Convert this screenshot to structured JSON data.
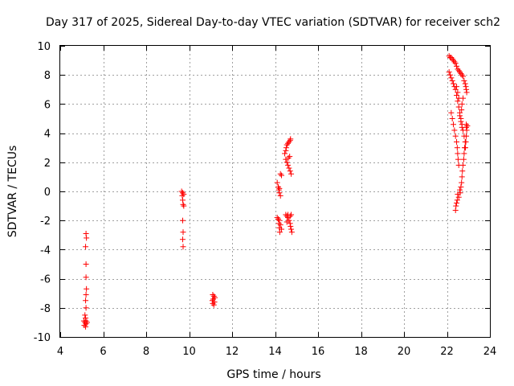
{
  "chart_data": {
    "type": "scatter",
    "title": "Day 317 of 2025, Sidereal Day-to-day VTEC variation (SDTVAR) for receiver sch2",
    "xlabel": "GPS time / hours",
    "ylabel": "SDTVAR / TECUs",
    "xlim": [
      4,
      24
    ],
    "ylim": [
      -10,
      10
    ],
    "xticks": [
      4,
      6,
      8,
      10,
      12,
      14,
      16,
      18,
      20,
      22,
      24
    ],
    "yticks": [
      -10,
      -8,
      -6,
      -4,
      -2,
      0,
      2,
      4,
      6,
      8,
      10
    ],
    "grid": true,
    "marker": "+",
    "marker_color": "#ff0000",
    "series": [
      {
        "name": "SDTVAR",
        "points": [
          [
            5.2,
            -2.9
          ],
          [
            5.22,
            -3.2
          ],
          [
            5.18,
            -3.8
          ],
          [
            5.2,
            -5.0
          ],
          [
            5.2,
            -5.9
          ],
          [
            5.22,
            -6.7
          ],
          [
            5.2,
            -7.1
          ],
          [
            5.18,
            -7.5
          ],
          [
            5.2,
            -8.0
          ],
          [
            5.15,
            -8.5
          ],
          [
            5.18,
            -8.7
          ],
          [
            5.1,
            -8.9
          ],
          [
            5.15,
            -9.0
          ],
          [
            5.2,
            -9.1
          ],
          [
            5.12,
            -9.2
          ],
          [
            5.18,
            -9.3
          ],
          [
            5.2,
            -8.9
          ],
          [
            5.25,
            -9.0
          ],
          [
            9.65,
            0.0
          ],
          [
            9.7,
            -0.1
          ],
          [
            9.75,
            -0.2
          ],
          [
            9.68,
            -0.3
          ],
          [
            9.7,
            -0.6
          ],
          [
            9.72,
            -0.9
          ],
          [
            9.75,
            -1.0
          ],
          [
            9.7,
            -2.0
          ],
          [
            9.72,
            -2.8
          ],
          [
            9.7,
            -3.3
          ],
          [
            9.72,
            -3.8
          ],
          [
            11.1,
            -7.1
          ],
          [
            11.15,
            -7.2
          ],
          [
            11.12,
            -7.4
          ],
          [
            11.08,
            -7.5
          ],
          [
            11.18,
            -7.6
          ],
          [
            11.1,
            -7.7
          ],
          [
            11.15,
            -7.8
          ],
          [
            11.2,
            -7.3
          ],
          [
            14.1,
            -1.8
          ],
          [
            14.15,
            -1.9
          ],
          [
            14.2,
            -2.0
          ],
          [
            14.18,
            -2.2
          ],
          [
            14.25,
            -2.3
          ],
          [
            14.2,
            -2.5
          ],
          [
            14.3,
            -2.6
          ],
          [
            14.22,
            -2.8
          ],
          [
            14.1,
            0.6
          ],
          [
            14.15,
            0.3
          ],
          [
            14.18,
            0.1
          ],
          [
            14.2,
            -0.1
          ],
          [
            14.25,
            -0.3
          ],
          [
            14.2,
            0.2
          ],
          [
            14.3,
            1.1
          ],
          [
            14.25,
            1.2
          ],
          [
            14.45,
            2.6
          ],
          [
            14.5,
            2.8
          ],
          [
            14.52,
            3.0
          ],
          [
            14.55,
            3.2
          ],
          [
            14.6,
            3.3
          ],
          [
            14.65,
            3.4
          ],
          [
            14.7,
            3.5
          ],
          [
            14.72,
            3.6
          ],
          [
            14.5,
            2.2
          ],
          [
            14.55,
            2.0
          ],
          [
            14.6,
            1.8
          ],
          [
            14.65,
            1.6
          ],
          [
            14.7,
            1.4
          ],
          [
            14.75,
            1.2
          ],
          [
            14.62,
            2.3
          ],
          [
            14.68,
            2.4
          ],
          [
            14.5,
            -1.6
          ],
          [
            14.55,
            -1.7
          ],
          [
            14.6,
            -1.8
          ],
          [
            14.65,
            -2.0
          ],
          [
            14.7,
            -2.2
          ],
          [
            14.72,
            -2.4
          ],
          [
            14.75,
            -2.6
          ],
          [
            14.78,
            -2.8
          ],
          [
            14.55,
            -2.1
          ],
          [
            14.6,
            -1.6
          ],
          [
            14.7,
            -1.7
          ],
          [
            14.75,
            -1.6
          ],
          [
            22.1,
            9.3
          ],
          [
            22.15,
            9.2
          ],
          [
            22.2,
            9.2
          ],
          [
            22.25,
            9.1
          ],
          [
            22.3,
            9.0
          ],
          [
            22.35,
            8.9
          ],
          [
            22.4,
            8.8
          ],
          [
            22.45,
            8.6
          ],
          [
            22.5,
            8.4
          ],
          [
            22.55,
            8.3
          ],
          [
            22.6,
            8.2
          ],
          [
            22.65,
            8.1
          ],
          [
            22.7,
            8.0
          ],
          [
            22.75,
            7.9
          ],
          [
            22.8,
            7.6
          ],
          [
            22.85,
            7.4
          ],
          [
            22.88,
            7.2
          ],
          [
            22.9,
            7.0
          ],
          [
            22.92,
            6.8
          ],
          [
            22.1,
            8.2
          ],
          [
            22.15,
            8.0
          ],
          [
            22.2,
            7.8
          ],
          [
            22.25,
            7.6
          ],
          [
            22.3,
            7.4
          ],
          [
            22.35,
            7.2
          ],
          [
            22.4,
            7.0
          ],
          [
            22.45,
            6.6
          ],
          [
            22.5,
            6.2
          ],
          [
            22.55,
            5.8
          ],
          [
            22.6,
            5.4
          ],
          [
            22.65,
            5.0
          ],
          [
            22.7,
            4.6
          ],
          [
            22.75,
            4.2
          ],
          [
            22.8,
            3.8
          ],
          [
            22.85,
            3.4
          ],
          [
            22.82,
            3.0
          ],
          [
            22.8,
            2.6
          ],
          [
            22.78,
            2.2
          ],
          [
            22.75,
            1.8
          ],
          [
            22.72,
            1.4
          ],
          [
            22.7,
            1.0
          ],
          [
            22.68,
            0.6
          ],
          [
            22.65,
            0.3
          ],
          [
            22.2,
            5.4
          ],
          [
            22.25,
            5.0
          ],
          [
            22.3,
            4.6
          ],
          [
            22.35,
            4.2
          ],
          [
            22.4,
            3.8
          ],
          [
            22.45,
            3.4
          ],
          [
            22.48,
            3.0
          ],
          [
            22.5,
            2.6
          ],
          [
            22.52,
            2.2
          ],
          [
            22.55,
            1.8
          ],
          [
            22.5,
            -0.2
          ],
          [
            22.55,
            -0.4
          ],
          [
            22.48,
            -0.6
          ],
          [
            22.45,
            -0.8
          ],
          [
            22.42,
            -1.0
          ],
          [
            22.4,
            -1.3
          ],
          [
            22.6,
            0.1
          ],
          [
            22.62,
            -0.1
          ],
          [
            22.9,
            4.6
          ],
          [
            22.92,
            4.2
          ],
          [
            22.9,
            3.8
          ],
          [
            22.88,
            3.4
          ],
          [
            22.86,
            3.0
          ],
          [
            22.9,
            4.4
          ],
          [
            22.95,
            4.5
          ],
          [
            22.6,
            5.2
          ],
          [
            22.65,
            4.8
          ],
          [
            22.7,
            4.4
          ],
          [
            22.75,
            6.4
          ],
          [
            22.7,
            6.0
          ],
          [
            22.68,
            5.6
          ],
          [
            22.55,
            6.4
          ],
          [
            22.5,
            6.8
          ],
          [
            22.45,
            7.2
          ]
        ]
      }
    ]
  }
}
